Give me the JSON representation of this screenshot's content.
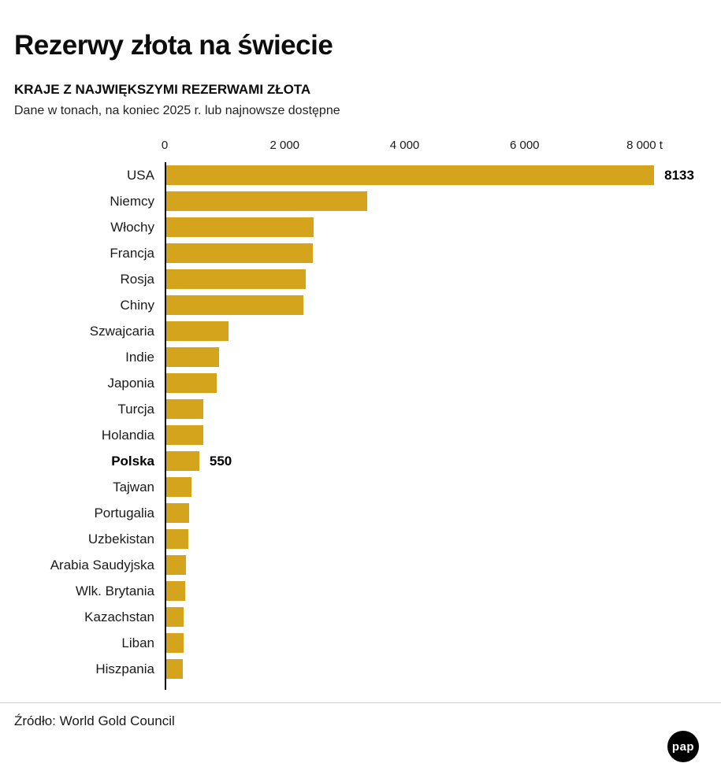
{
  "header": {
    "title": "Rezerwy złota na świecie",
    "subtitle": "KRAJE Z NAJWIĘKSZYMI REZERWAMI ZŁOTA",
    "note": "Dane w tonach, na koniec 2025 r. lub najnowsze dostępne"
  },
  "chart_data": {
    "type": "bar",
    "orientation": "horizontal",
    "unit": "t",
    "bar_color": "#D4A41C",
    "xlim": [
      0,
      8400
    ],
    "grid": false,
    "x_ticks": [
      {
        "value": 0,
        "label": "0"
      },
      {
        "value": 2000,
        "label": "2 000"
      },
      {
        "value": 4000,
        "label": "4 000"
      },
      {
        "value": 6000,
        "label": "6 000"
      },
      {
        "value": 8000,
        "label": "8 000 t"
      }
    ],
    "categories": [
      "USA",
      "Niemcy",
      "Włochy",
      "Francja",
      "Rosja",
      "Chiny",
      "Szwajcaria",
      "Indie",
      "Japonia",
      "Turcja",
      "Holandia",
      "Polska",
      "Tajwan",
      "Portugalia",
      "Uzbekistan",
      "Arabia Saudyjska",
      "Wlk. Brytania",
      "Kazachstan",
      "Liban",
      "Hiszpania"
    ],
    "values": [
      8133,
      3350,
      2452,
      2437,
      2330,
      2280,
      1040,
      880,
      846,
      617,
      612,
      550,
      422,
      383,
      371,
      323,
      310,
      294,
      287,
      282
    ],
    "value_labels": {
      "USA": "8133",
      "Polska": "550"
    },
    "bold_labels": [
      "Polska"
    ]
  },
  "footer": {
    "source": "Źródło: World Gold Council",
    "logo_text": "pap"
  }
}
